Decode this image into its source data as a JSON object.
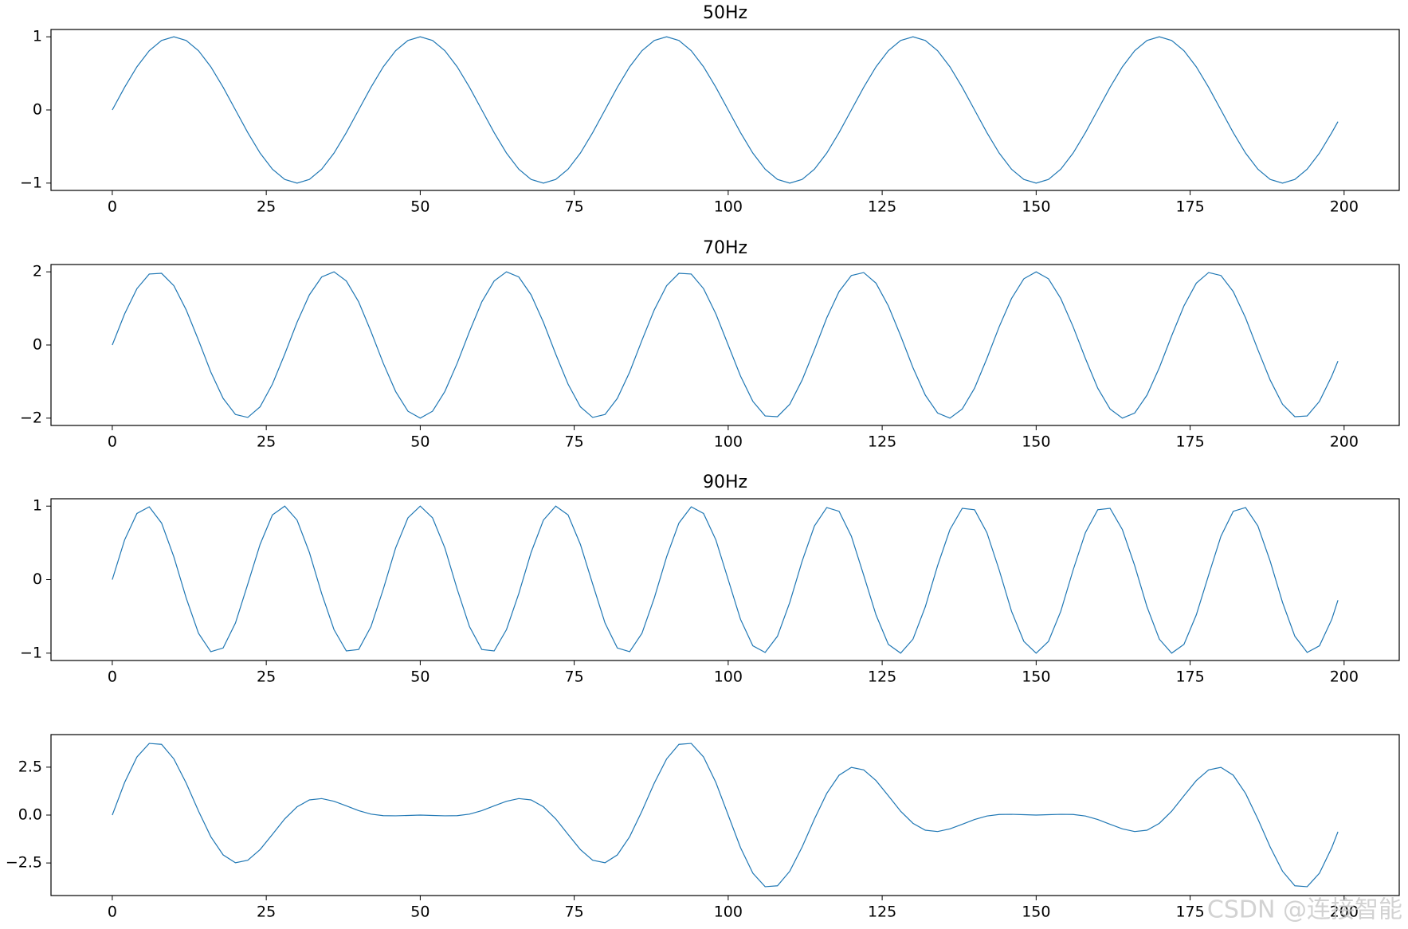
{
  "chart_data": [
    {
      "type": "line",
      "title": "50Hz",
      "color": "#1f77b4",
      "x": [
        0,
        2,
        4,
        6,
        8,
        10,
        12,
        14,
        16,
        18,
        20,
        22,
        24,
        26,
        28,
        30,
        32,
        34,
        36,
        38,
        40,
        42,
        44,
        46,
        48,
        50,
        52,
        54,
        56,
        58,
        60,
        62,
        64,
        66,
        68,
        70,
        72,
        74,
        76,
        78,
        80,
        82,
        84,
        86,
        88,
        90,
        92,
        94,
        96,
        98,
        100,
        102,
        104,
        106,
        108,
        110,
        112,
        114,
        116,
        118,
        120,
        122,
        124,
        126,
        128,
        130,
        132,
        134,
        136,
        138,
        140,
        142,
        144,
        146,
        148,
        150,
        152,
        154,
        156,
        158,
        160,
        162,
        164,
        166,
        168,
        170,
        172,
        174,
        176,
        178,
        180,
        182,
        184,
        186,
        188,
        190,
        192,
        194,
        196,
        198,
        199
      ],
      "values": [
        0,
        0.31,
        0.59,
        0.81,
        0.95,
        1,
        0.95,
        0.81,
        0.59,
        0.31,
        0,
        -0.31,
        -0.59,
        -0.81,
        -0.95,
        -1,
        -0.95,
        -0.81,
        -0.59,
        -0.31,
        0,
        0.31,
        0.59,
        0.81,
        0.95,
        1,
        0.95,
        0.81,
        0.59,
        0.31,
        0,
        -0.31,
        -0.59,
        -0.81,
        -0.95,
        -1,
        -0.95,
        -0.81,
        -0.59,
        -0.31,
        0,
        0.31,
        0.59,
        0.81,
        0.95,
        1,
        0.95,
        0.81,
        0.59,
        0.31,
        0,
        -0.31,
        -0.59,
        -0.81,
        -0.95,
        -1,
        -0.95,
        -0.81,
        -0.59,
        -0.31,
        0,
        0.31,
        0.59,
        0.81,
        0.95,
        1,
        0.95,
        0.81,
        0.59,
        0.31,
        0,
        -0.31,
        -0.59,
        -0.81,
        -0.95,
        -1,
        -0.95,
        -0.81,
        -0.59,
        -0.31,
        0,
        0.31,
        0.59,
        0.81,
        0.95,
        1,
        0.95,
        0.81,
        0.59,
        0.31,
        0,
        -0.31,
        -0.59,
        -0.81,
        -0.95,
        -1,
        -0.95,
        -0.81,
        -0.59,
        -0.31,
        -0.16
      ],
      "xlim": [
        -9.95,
        208.95
      ],
      "xticks": [
        0,
        25,
        50,
        75,
        100,
        125,
        150,
        175,
        200
      ],
      "ylim": [
        -1.1,
        1.1
      ],
      "yticks": [
        {
          "value": -1,
          "label": "−1"
        },
        0,
        1
      ]
    },
    {
      "type": "line",
      "title": "70Hz",
      "color": "#1f77b4",
      "x": [
        0,
        2,
        4,
        6,
        8,
        10,
        12,
        14,
        16,
        18,
        20,
        22,
        24,
        26,
        28,
        30,
        32,
        34,
        36,
        38,
        40,
        42,
        44,
        46,
        48,
        50,
        52,
        54,
        56,
        58,
        60,
        62,
        64,
        66,
        68,
        70,
        72,
        74,
        76,
        78,
        80,
        82,
        84,
        86,
        88,
        90,
        92,
        94,
        96,
        98,
        100,
        102,
        104,
        106,
        108,
        110,
        112,
        114,
        116,
        118,
        120,
        122,
        124,
        126,
        128,
        130,
        132,
        134,
        136,
        138,
        140,
        142,
        144,
        146,
        148,
        150,
        152,
        154,
        156,
        158,
        160,
        162,
        164,
        166,
        168,
        170,
        172,
        174,
        176,
        178,
        180,
        182,
        184,
        186,
        188,
        190,
        192,
        194,
        196,
        198,
        199
      ],
      "values": [
        0,
        0.85,
        1.54,
        1.94,
        1.96,
        1.62,
        0.96,
        0.13,
        -0.74,
        -1.46,
        -1.9,
        -1.98,
        -1.69,
        -1.07,
        -0.25,
        0.62,
        1.37,
        1.86,
        2,
        1.75,
        1.18,
        0.37,
        -0.5,
        -1.27,
        -1.81,
        -2,
        -1.81,
        -1.27,
        -0.5,
        0.37,
        1.18,
        1.75,
        2,
        1.86,
        1.37,
        0.62,
        -0.25,
        -1.07,
        -1.69,
        -1.98,
        -1.9,
        -1.46,
        -0.74,
        0.13,
        0.96,
        1.62,
        1.96,
        1.94,
        1.54,
        0.85,
        0,
        -0.85,
        -1.54,
        -1.94,
        -1.96,
        -1.62,
        -0.96,
        -0.13,
        0.74,
        1.46,
        1.9,
        1.98,
        1.69,
        1.07,
        0.25,
        -0.62,
        -1.37,
        -1.86,
        -2,
        -1.75,
        -1.18,
        -0.37,
        0.5,
        1.27,
        1.81,
        2,
        1.81,
        1.27,
        0.5,
        -0.37,
        -1.18,
        -1.75,
        -2,
        -1.86,
        -1.37,
        -0.62,
        0.25,
        1.07,
        1.69,
        1.98,
        1.9,
        1.46,
        0.74,
        -0.13,
        -0.96,
        -1.62,
        -1.96,
        -1.94,
        -1.54,
        -0.85,
        -0.44
      ],
      "xlim": [
        -9.95,
        208.95
      ],
      "xticks": [
        0,
        25,
        50,
        75,
        100,
        125,
        150,
        175,
        200
      ],
      "ylim": [
        -2.2,
        2.2
      ],
      "yticks": [
        {
          "value": -2,
          "label": "−2"
        },
        0,
        2
      ]
    },
    {
      "type": "line",
      "title": "90Hz",
      "color": "#1f77b4",
      "x": [
        0,
        2,
        4,
        6,
        8,
        10,
        12,
        14,
        16,
        18,
        20,
        22,
        24,
        26,
        28,
        30,
        32,
        34,
        36,
        38,
        40,
        42,
        44,
        46,
        48,
        50,
        52,
        54,
        56,
        58,
        60,
        62,
        64,
        66,
        68,
        70,
        72,
        74,
        76,
        78,
        80,
        82,
        84,
        86,
        88,
        90,
        92,
        94,
        96,
        98,
        100,
        102,
        104,
        106,
        108,
        110,
        112,
        114,
        116,
        118,
        120,
        122,
        124,
        126,
        128,
        130,
        132,
        134,
        136,
        138,
        140,
        142,
        144,
        146,
        148,
        150,
        152,
        154,
        156,
        158,
        160,
        162,
        164,
        166,
        168,
        170,
        172,
        174,
        176,
        178,
        180,
        182,
        184,
        186,
        188,
        190,
        192,
        194,
        196,
        198,
        199
      ],
      "values": [
        0,
        0.54,
        0.9,
        0.99,
        0.77,
        0.31,
        -0.25,
        -0.73,
        -0.98,
        -0.93,
        -0.59,
        -0.06,
        0.48,
        0.88,
        1,
        0.81,
        0.37,
        -0.19,
        -0.68,
        -0.97,
        -0.95,
        -0.64,
        -0.13,
        0.43,
        0.84,
        1,
        0.84,
        0.43,
        -0.13,
        -0.64,
        -0.95,
        -0.97,
        -0.68,
        -0.19,
        0.37,
        0.81,
        1,
        0.88,
        0.48,
        -0.06,
        -0.59,
        -0.93,
        -0.98,
        -0.73,
        -0.25,
        0.31,
        0.77,
        0.99,
        0.9,
        0.54,
        0,
        -0.54,
        -0.9,
        -0.99,
        -0.77,
        -0.31,
        0.25,
        0.73,
        0.98,
        0.93,
        0.59,
        0.06,
        -0.48,
        -0.88,
        -1,
        -0.81,
        -0.37,
        0.19,
        0.68,
        0.97,
        0.95,
        0.64,
        0.13,
        -0.43,
        -0.84,
        -1,
        -0.84,
        -0.43,
        0.13,
        0.64,
        0.95,
        0.97,
        0.68,
        0.19,
        -0.37,
        -0.81,
        -1,
        -0.88,
        -0.48,
        0.06,
        0.59,
        0.93,
        0.98,
        0.73,
        0.25,
        -0.31,
        -0.77,
        -0.99,
        -0.9,
        -0.54,
        -0.28
      ],
      "xlim": [
        -9.95,
        208.95
      ],
      "xticks": [
        0,
        25,
        50,
        75,
        100,
        125,
        150,
        175,
        200
      ],
      "ylim": [
        -1.1,
        1.1
      ],
      "yticks": [
        {
          "value": -1,
          "label": "−1"
        },
        0,
        1
      ]
    },
    {
      "type": "line",
      "color": "#1f77b4",
      "watermark": "CSDN @连接智能",
      "x": [
        0,
        2,
        4,
        6,
        8,
        10,
        12,
        14,
        16,
        18,
        20,
        22,
        24,
        26,
        28,
        30,
        32,
        34,
        36,
        38,
        40,
        42,
        44,
        46,
        48,
        50,
        52,
        54,
        56,
        58,
        60,
        62,
        64,
        66,
        68,
        70,
        72,
        74,
        76,
        78,
        80,
        82,
        84,
        86,
        88,
        90,
        92,
        94,
        96,
        98,
        100,
        102,
        104,
        106,
        108,
        110,
        112,
        114,
        116,
        118,
        120,
        122,
        124,
        126,
        128,
        130,
        132,
        134,
        136,
        138,
        140,
        142,
        144,
        146,
        148,
        150,
        152,
        154,
        156,
        158,
        160,
        162,
        164,
        166,
        168,
        170,
        172,
        174,
        176,
        178,
        180,
        182,
        184,
        186,
        188,
        190,
        192,
        194,
        196,
        198,
        199
      ],
      "values": [
        0,
        1.7,
        3.03,
        3.74,
        3.69,
        2.93,
        1.67,
        0.21,
        -1.13,
        -2.08,
        -2.49,
        -2.36,
        -1.8,
        -1.01,
        -0.2,
        0.43,
        0.79,
        0.86,
        0.72,
        0.48,
        0.23,
        0.05,
        -0.03,
        -0.04,
        -0.02,
        0,
        -0.02,
        -0.04,
        -0.03,
        0.05,
        0.23,
        0.48,
        0.72,
        0.86,
        0.79,
        0.43,
        -0.2,
        -1.01,
        -1.8,
        -2.36,
        -2.49,
        -2.08,
        -1.13,
        0.21,
        1.67,
        2.93,
        3.69,
        3.74,
        3.03,
        1.7,
        0,
        -1.7,
        -3.03,
        -3.74,
        -3.69,
        -2.93,
        -1.67,
        -0.21,
        1.13,
        2.08,
        2.49,
        2.36,
        1.8,
        1.01,
        0.2,
        -0.43,
        -0.79,
        -0.86,
        -0.72,
        -0.48,
        -0.23,
        -0.05,
        0.03,
        0.04,
        0.02,
        0,
        0.02,
        0.04,
        0.03,
        -0.05,
        -0.23,
        -0.48,
        -0.72,
        -0.86,
        -0.79,
        -0.43,
        0.2,
        1.01,
        1.8,
        2.36,
        2.49,
        2.08,
        1.13,
        -0.21,
        -1.67,
        -2.93,
        -3.69,
        -3.74,
        -3.03,
        -1.7,
        -0.87
      ],
      "xlim": [
        -9.95,
        208.95
      ],
      "xticks": [
        0,
        25,
        50,
        75,
        100,
        125,
        150,
        175,
        200
      ],
      "ylim": [
        -4.2,
        4.2
      ],
      "yticks": [
        {
          "value": -2.5,
          "label": "−2.5"
        },
        {
          "value": 0,
          "label": "0.0"
        },
        2.5
      ]
    }
  ]
}
